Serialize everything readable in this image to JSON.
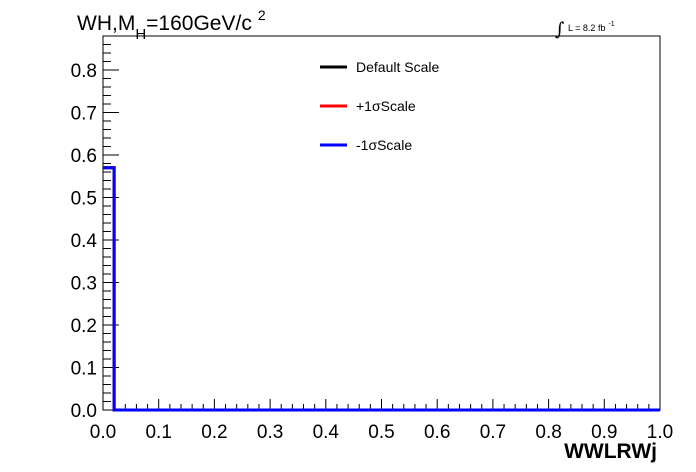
{
  "chart_data": {
    "type": "line",
    "title": {
      "prefix": "WH,M",
      "sub": "H",
      "mid": "=160GeV/c",
      "sup": "2"
    },
    "luminosity": {
      "integral": "∫",
      "text": "L = 8.2 fb",
      "sup": "-1"
    },
    "xlabel": "WWLRWj",
    "ylabel": "",
    "xlim": [
      0.0,
      1.0
    ],
    "ylim": [
      0.0,
      0.88
    ],
    "x_ticks": [
      "0.0",
      "0.1",
      "0.2",
      "0.3",
      "0.4",
      "0.5",
      "0.6",
      "0.7",
      "0.8",
      "0.9",
      "1.0"
    ],
    "y_ticks": [
      "0.0",
      "0.1",
      "0.2",
      "0.3",
      "0.4",
      "0.5",
      "0.6",
      "0.7",
      "0.8"
    ],
    "legend_position": "top-center",
    "legend": [
      {
        "label": "Default Scale",
        "color": "#000000"
      },
      {
        "label": "+1σScale",
        "color": "#ff0000"
      },
      {
        "label": "-1σScale",
        "color": "#0000ff"
      }
    ],
    "series": [
      {
        "name": "Default Scale",
        "color": "#000000",
        "x": [
          0.0,
          0.02,
          0.02,
          1.0
        ],
        "y": [
          0.57,
          0.57,
          0.0,
          0.0
        ]
      },
      {
        "name": "+1σScale",
        "color": "#ff0000",
        "x": [
          0.0,
          0.02,
          0.02,
          1.0
        ],
        "y": [
          0.57,
          0.57,
          0.0,
          0.0
        ]
      },
      {
        "name": "-1σScale",
        "color": "#0000ff",
        "x": [
          0.0,
          0.02,
          0.02,
          1.0
        ],
        "y": [
          0.57,
          0.57,
          0.0,
          0.0
        ]
      }
    ]
  }
}
